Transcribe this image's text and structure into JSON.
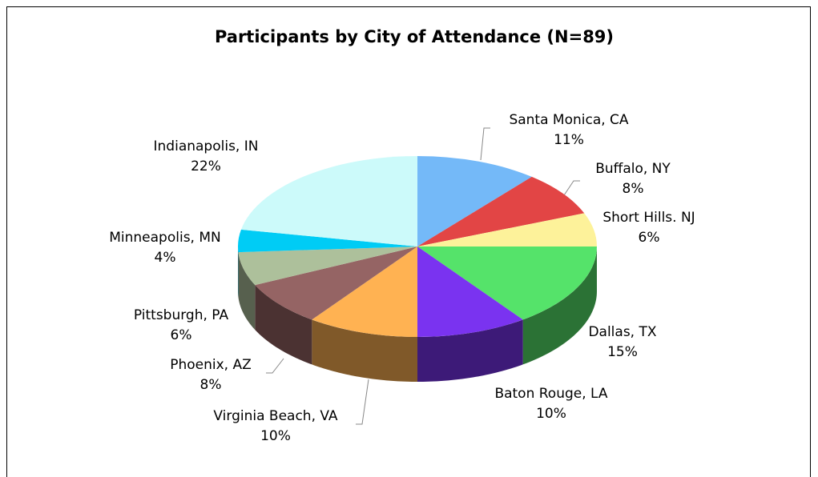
{
  "chart_data": {
    "type": "pie",
    "title": "Participants by City of Attendance (N=89)",
    "categories": [
      "Santa Monica, CA",
      "Buffalo, NY",
      "Short Hills. NJ",
      "Dallas, TX",
      "Baton Rouge, LA",
      "Virginia Beach, VA",
      "Phoenix, AZ",
      "Pittsburgh, PA",
      "Minneapolis, MN",
      "Indianapolis, IN"
    ],
    "values": [
      11,
      8,
      6,
      15,
      10,
      10,
      8,
      6,
      4,
      22
    ],
    "value_labels": [
      "11%",
      "8%",
      "6%",
      "15%",
      "10%",
      "10%",
      "8%",
      "6%",
      "4%",
      "22%"
    ],
    "colors": [
      "#74b9f8",
      "#e24545",
      "#fdf29a",
      "#55e36a",
      "#7a33f0",
      "#ffb252",
      "#956464",
      "#adc09b",
      "#00ccf5",
      "#ccfafa"
    ]
  }
}
